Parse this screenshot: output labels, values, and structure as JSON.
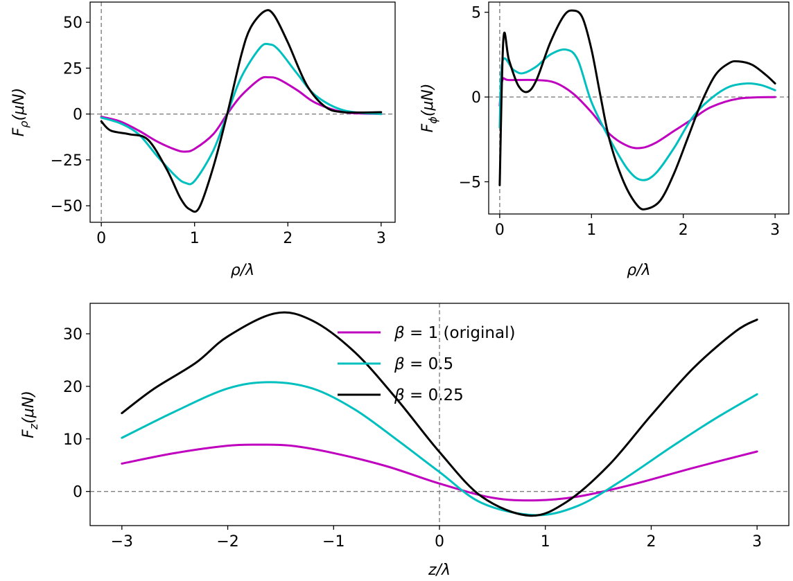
{
  "colors": {
    "beta_1": "#bf00bf",
    "beta_05": "#00bfbf",
    "beta_025": "#000000",
    "reference_line": "#808080"
  },
  "chart_data": [
    {
      "id": "panel-frho",
      "type": "line",
      "xlabel": "ρ/λ",
      "ylabel_main": "F",
      "ylabel_sub": "ρ",
      "ylabel_tail": "(μN)",
      "xlim": [
        -0.12,
        3.15
      ],
      "ylim": [
        -59,
        61
      ],
      "xticks": [
        0,
        1,
        2,
        3
      ],
      "xtick_labels": [
        "0",
        "1",
        "2",
        "3"
      ],
      "yticks": [
        50,
        25,
        0,
        -25,
        -50
      ],
      "ytick_labels": [
        "50",
        "25",
        "0",
        "−25",
        "−50"
      ],
      "reference_lines": {
        "x": 0,
        "y": 0
      },
      "series": [
        {
          "color_key": "beta_1",
          "x": [
            0,
            0.2,
            0.4,
            0.6,
            0.8,
            0.9,
            1.0,
            1.2,
            1.35,
            1.5,
            1.7,
            1.8,
            1.9,
            2.1,
            2.3,
            2.6,
            3.0
          ],
          "y": [
            -1.5,
            -4,
            -9,
            -15,
            -19.5,
            -20.5,
            -19,
            -11,
            0,
            10,
            19,
            20,
            19,
            13,
            6,
            1,
            0
          ]
        },
        {
          "color_key": "beta_05",
          "x": [
            0,
            0.2,
            0.4,
            0.6,
            0.8,
            0.9,
            1.0,
            1.2,
            1.35,
            1.5,
            1.7,
            1.8,
            1.9,
            2.1,
            2.3,
            2.6,
            3.0
          ],
          "y": [
            -2,
            -5,
            -11,
            -23,
            -34,
            -37.5,
            -36.5,
            -20,
            0,
            20,
            36,
            38,
            35,
            22,
            10,
            2,
            0
          ]
        },
        {
          "color_key": "beta_025",
          "x": [
            0,
            0.1,
            0.3,
            0.5,
            0.7,
            0.85,
            0.95,
            1.05,
            1.2,
            1.35,
            1.5,
            1.6,
            1.75,
            1.85,
            2.0,
            2.2,
            2.4,
            2.6,
            3.0
          ],
          "y": [
            -4,
            -9,
            -11,
            -14,
            -30,
            -46,
            -52,
            -51,
            -29,
            0,
            32,
            47,
            56,
            54,
            39,
            16,
            4,
            1,
            1
          ]
        }
      ]
    },
    {
      "id": "panel-fphi",
      "type": "line",
      "xlabel": "ρ/λ",
      "ylabel_main": "F",
      "ylabel_sub": "ϕ",
      "ylabel_tail": "(μN)",
      "xlim": [
        -0.12,
        3.15
      ],
      "ylim": [
        -6.9,
        5.6
      ],
      "xticks": [
        0,
        1,
        2,
        3
      ],
      "xtick_labels": [
        "0",
        "1",
        "2",
        "3"
      ],
      "yticks": [
        5,
        0,
        -5
      ],
      "ytick_labels": [
        "5",
        "0",
        "−5"
      ],
      "reference_lines": {
        "x": 0,
        "y": 0
      },
      "series": [
        {
          "color_key": "beta_1",
          "x": [
            0,
            0.03,
            0.1,
            0.4,
            0.6,
            0.8,
            1.0,
            1.2,
            1.4,
            1.55,
            1.7,
            1.9,
            2.1,
            2.3,
            2.6,
            3.0
          ],
          "y": [
            -0.5,
            1.0,
            1.0,
            1.0,
            0.85,
            0.2,
            -0.9,
            -2.2,
            -2.9,
            -3.0,
            -2.7,
            -2.0,
            -1.3,
            -0.6,
            -0.1,
            0
          ]
        },
        {
          "color_key": "beta_05",
          "x": [
            0,
            0.03,
            0.15,
            0.25,
            0.4,
            0.55,
            0.72,
            0.85,
            1.0,
            1.2,
            1.4,
            1.55,
            1.7,
            1.9,
            2.1,
            2.3,
            2.5,
            2.7,
            2.85,
            3.0
          ],
          "y": [
            -1.8,
            2.1,
            1.6,
            1.4,
            1.8,
            2.5,
            2.8,
            2.2,
            -0.3,
            -2.5,
            -4.3,
            -4.9,
            -4.5,
            -3.0,
            -1.2,
            -0.1,
            0.6,
            0.8,
            0.7,
            0.4
          ]
        },
        {
          "color_key": "beta_025",
          "x": [
            0,
            0.04,
            0.1,
            0.2,
            0.3,
            0.4,
            0.55,
            0.7,
            0.8,
            0.9,
            1.0,
            1.1,
            1.2,
            1.35,
            1.5,
            1.6,
            1.75,
            1.9,
            2.05,
            2.2,
            2.35,
            2.5,
            2.6,
            2.75,
            2.9,
            3.0
          ],
          "y": [
            -5.2,
            3.4,
            2.2,
            0.7,
            0.3,
            1.0,
            3.2,
            4.8,
            5.1,
            4.7,
            2.8,
            0.0,
            -2.6,
            -5.0,
            -6.4,
            -6.6,
            -6.1,
            -4.5,
            -2.4,
            -0.3,
            1.3,
            2.0,
            2.1,
            1.9,
            1.3,
            0.8
          ]
        }
      ]
    },
    {
      "id": "panel-fz",
      "type": "line",
      "xlabel": "z/λ",
      "ylabel_main": "F",
      "ylabel_sub": "z",
      "ylabel_tail": "(μN)",
      "xlim": [
        -3.3,
        3.3
      ],
      "ylim": [
        -6.5,
        35.8
      ],
      "xticks": [
        -3,
        -2,
        -1,
        0,
        1,
        2,
        3
      ],
      "xtick_labels": [
        "−3",
        "−2",
        "−1",
        "0",
        "1",
        "2",
        "3"
      ],
      "yticks": [
        30,
        20,
        10,
        0
      ],
      "ytick_labels": [
        "30",
        "20",
        "10",
        "0"
      ],
      "reference_lines": {
        "x": 0,
        "y": 0
      },
      "series": [
        {
          "name": "β = 1 (original)",
          "legend_symbol": "β",
          "legend_text": " = 1 (original)",
          "color_key": "beta_1",
          "x": [
            -3,
            -2.5,
            -2.0,
            -1.7,
            -1.4,
            -1.0,
            -0.5,
            0,
            0.5,
            0.9,
            1.3,
            1.8,
            2.4,
            3.0
          ],
          "y": [
            5.3,
            7.3,
            8.7,
            8.9,
            8.7,
            7.3,
            4.8,
            1.5,
            -1.2,
            -1.7,
            -1.0,
            1.2,
            4.5,
            7.6
          ]
        },
        {
          "name": "β = 0.5",
          "legend_symbol": "β",
          "legend_text": " = 0.5",
          "color_key": "beta_05",
          "x": [
            -3,
            -2.5,
            -2.0,
            -1.6,
            -1.2,
            -0.8,
            -0.4,
            0,
            0.4,
            0.9,
            1.3,
            1.7,
            2.2,
            2.6,
            3.0
          ],
          "y": [
            10.2,
            15.2,
            19.6,
            20.8,
            19.6,
            15.6,
            9.8,
            3.7,
            -2.2,
            -4.5,
            -2.8,
            1.8,
            8.6,
            13.8,
            18.5
          ]
        },
        {
          "name": "β = 0.25",
          "legend_symbol": "β",
          "legend_text": " = 0.25",
          "color_key": "beta_025",
          "x": [
            -3,
            -2.7,
            -2.3,
            -2.0,
            -1.55,
            -1.2,
            -0.8,
            -0.4,
            0,
            0.4,
            0.85,
            1.2,
            1.6,
            2.0,
            2.4,
            2.8,
            3.0
          ],
          "y": [
            14.9,
            19.5,
            24.5,
            29.5,
            33.9,
            32.5,
            26.5,
            17.5,
            7.5,
            -1.0,
            -4.6,
            -2.0,
            5.0,
            14.5,
            23.5,
            30.5,
            32.7
          ]
        }
      ]
    }
  ]
}
